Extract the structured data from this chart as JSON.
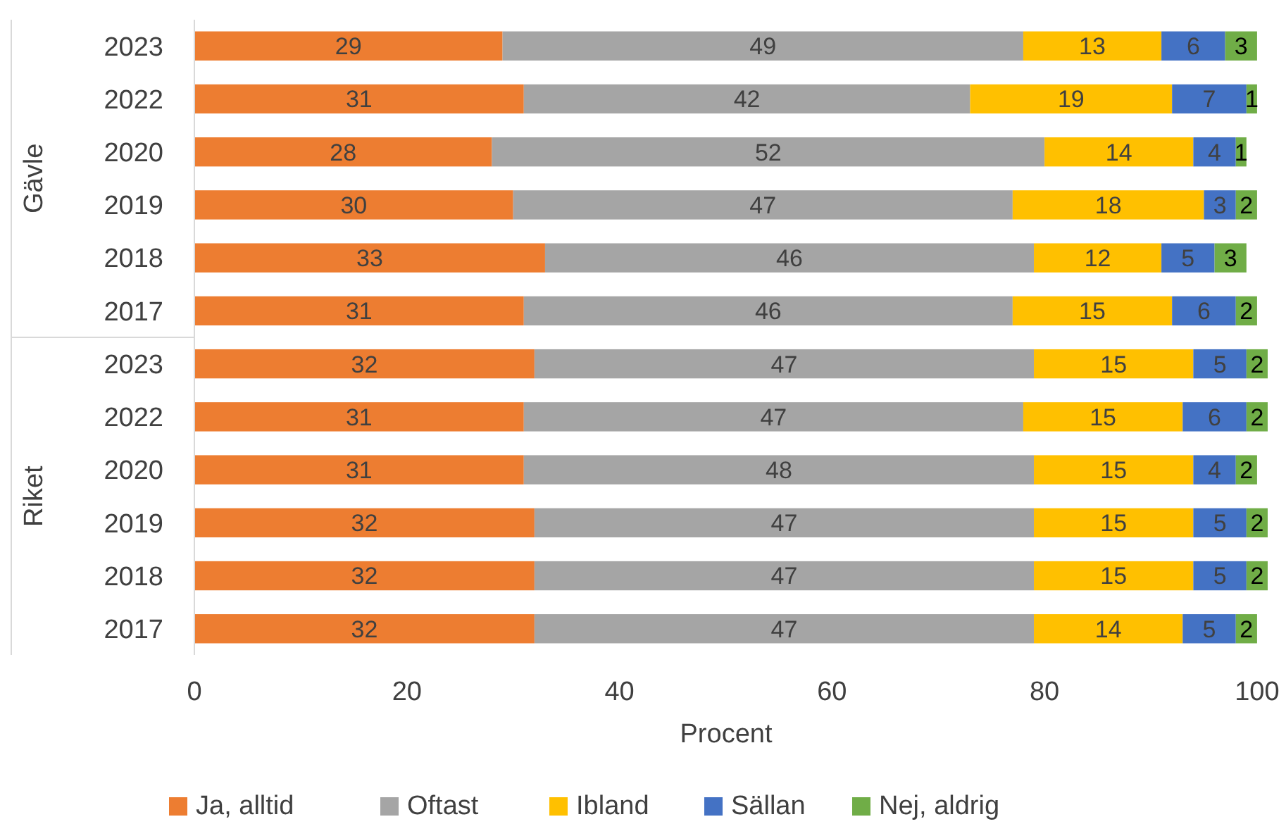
{
  "chart_data": {
    "type": "bar",
    "orientation": "horizontal",
    "stacked": true,
    "xlabel": "Procent",
    "categories": [
      "2023",
      "2022",
      "2020",
      "2019",
      "2018",
      "2017",
      "2023",
      "2022",
      "2020",
      "2019",
      "2018",
      "2017"
    ],
    "annotations": [
      "Gävle",
      "Riket"
    ],
    "series": [
      {
        "name": "Ja, alltid",
        "color": "#ed7d31",
        "values": [
          29,
          31,
          28,
          30,
          33,
          31,
          32,
          31,
          31,
          32,
          32,
          32
        ]
      },
      {
        "name": "Oftast",
        "color": "#a5a5a5",
        "values": [
          49,
          42,
          52,
          47,
          46,
          46,
          47,
          47,
          48,
          47,
          47,
          47
        ]
      },
      {
        "name": "Ibland",
        "color": "#ffc000",
        "values": [
          13,
          19,
          14,
          18,
          12,
          15,
          15,
          15,
          15,
          15,
          15,
          14
        ]
      },
      {
        "name": "Sällan",
        "color": "#4472c4",
        "values": [
          6,
          7,
          4,
          3,
          5,
          6,
          5,
          6,
          4,
          5,
          5,
          5
        ]
      },
      {
        "name": "Nej, aldrig",
        "color": "#70ad47",
        "values": [
          3,
          1,
          1,
          2,
          3,
          2,
          2,
          2,
          2,
          2,
          2,
          2
        ]
      }
    ],
    "xlim": [
      0,
      101
    ],
    "xticks": [
      0,
      20,
      40,
      60,
      80,
      100
    ],
    "data_labels": true,
    "legend": "bottom",
    "grid": false
  }
}
